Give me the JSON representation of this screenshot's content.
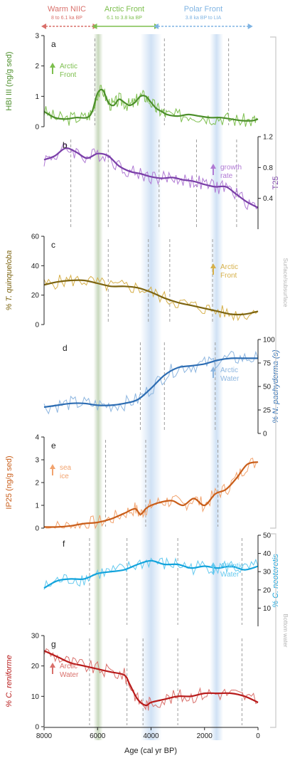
{
  "figure": {
    "x_axis_label": "Age (cal yr BP)",
    "x_ticks": [
      8000,
      6000,
      4000,
      2000,
      0
    ],
    "xlim": [
      8000,
      0
    ]
  },
  "phases": [
    {
      "title": "Warm NIIC",
      "range": "8 to 6.1 ka BP",
      "color": "#d9706b",
      "start": 8000,
      "end": 6100
    },
    {
      "title": "Arctic Front",
      "range": "6.1 to 3.8 ka BP",
      "color": "#7dbf4e",
      "start": 6100,
      "end": 3800
    },
    {
      "title": "Polar Front",
      "range": "3.8 ka BP to LIA",
      "color": "#7fb4e3",
      "start": 3800,
      "end": 300
    }
  ],
  "shading": [
    {
      "start": 6150,
      "end": 5800,
      "color": "#9cb887"
    },
    {
      "start": 4400,
      "end": 3600,
      "color": "#a9c9ec"
    },
    {
      "start": 1800,
      "end": 1300,
      "color": "#a9c9ec"
    }
  ],
  "brackets": [
    {
      "label": "Surface/subsurface"
    },
    {
      "label": "Bottom water"
    }
  ],
  "chart_data": [
    {
      "type": "line",
      "letter": "a",
      "ylabel": "HBI III (ng/g sed)",
      "color": "#7dbf4e",
      "smooth_color": "#4d8f2b",
      "ylim": [
        0,
        3
      ],
      "yticks": [
        0,
        1,
        2,
        3
      ],
      "annotation": [
        "Arctic",
        "Front"
      ],
      "dashed_lines": [
        6100,
        3500,
        1100
      ],
      "series": [
        {
          "x": [
            8000,
            7600,
            7200,
            6800,
            6400,
            6200,
            6000,
            5800,
            5600,
            5400,
            5200,
            5000,
            4800,
            4600,
            4400,
            4200,
            4000,
            3800,
            3600,
            3400,
            3000,
            2600,
            2200,
            1800,
            1400,
            1000,
            600,
            200,
            0
          ],
          "y": [
            0.5,
            0.3,
            0.25,
            0.3,
            0.3,
            0.5,
            1.1,
            1.2,
            0.8,
            0.7,
            0.9,
            0.8,
            0.7,
            0.8,
            1.0,
            1.0,
            0.8,
            0.6,
            0.5,
            0.4,
            0.35,
            0.4,
            0.35,
            0.3,
            0.3,
            0.25,
            0.2,
            0.2,
            0.25
          ]
        }
      ]
    },
    {
      "type": "line",
      "letter": "b",
      "ylabel": "T25",
      "color": "#b07ad4",
      "smooth_color": "#7a3fa8",
      "ylim": [
        0,
        1.2
      ],
      "yticks": [
        0.4,
        0.8,
        1.2
      ],
      "annotation": [
        "growth",
        "rate"
      ],
      "dashed_lines": [
        7000,
        5600,
        3700,
        2300,
        800
      ],
      "series": [
        {
          "x": [
            8000,
            7600,
            7200,
            6800,
            6400,
            6000,
            5600,
            5200,
            4800,
            4400,
            4000,
            3600,
            3200,
            2800,
            2400,
            2000,
            1600,
            1200,
            800,
            400,
            0
          ],
          "y": [
            0.9,
            0.95,
            1.05,
            1.0,
            0.92,
            0.98,
            0.95,
            0.82,
            0.75,
            0.72,
            0.68,
            0.66,
            0.67,
            0.64,
            0.62,
            0.58,
            0.55,
            0.55,
            0.45,
            0.35,
            0.28
          ]
        }
      ]
    },
    {
      "type": "line",
      "letter": "c",
      "ylabel": "% T. quinqueloba",
      "color": "#d6b04a",
      "smooth_color": "#7d6410",
      "ylim": [
        0,
        60
      ],
      "yticks": [
        0,
        20,
        40,
        60
      ],
      "annotation": [
        "Arctic",
        "Front"
      ],
      "dashed_lines": [
        5600,
        4100,
        3300,
        1700
      ],
      "series": [
        {
          "x": [
            8000,
            7500,
            7000,
            6500,
            6000,
            5500,
            5000,
            4500,
            4000,
            3500,
            3000,
            2500,
            2000,
            1500,
            1000,
            500,
            0
          ],
          "y": [
            27,
            29,
            30,
            30,
            28,
            26,
            26,
            25,
            22,
            18,
            15,
            13,
            11,
            9,
            7,
            7,
            9
          ]
        }
      ]
    },
    {
      "type": "line",
      "letter": "d",
      "ylabel": "% N. pachyderma (s)",
      "color": "#8db6e0",
      "smooth_color": "#2d6db3",
      "ylim": [
        0,
        100
      ],
      "yticks": [
        0,
        25,
        50,
        75,
        100
      ],
      "annotation": [
        "Arctic",
        "Water"
      ],
      "dashed_lines": [
        4400,
        3500,
        1600
      ],
      "series": [
        {
          "x": [
            8000,
            7500,
            7000,
            6500,
            6000,
            5500,
            5000,
            4500,
            4000,
            3500,
            3000,
            2500,
            2000,
            1500,
            1000,
            500,
            0
          ],
          "y": [
            28,
            30,
            32,
            32,
            30,
            30,
            32,
            36,
            48,
            62,
            70,
            72,
            74,
            78,
            80,
            80,
            80
          ]
        }
      ]
    },
    {
      "type": "line",
      "letter": "e",
      "ylabel": "IP25 (ng/g sed)",
      "color": "#f2a36e",
      "smooth_color": "#c95e1a",
      "ylim": [
        0,
        4
      ],
      "yticks": [
        0,
        1,
        2,
        3,
        4
      ],
      "annotation": [
        "sea",
        "ice"
      ],
      "dashed_lines": [
        5700,
        4200,
        1500
      ],
      "series": [
        {
          "x": [
            8000,
            7500,
            7000,
            6500,
            6000,
            5500,
            5000,
            4600,
            4400,
            4200,
            4000,
            3600,
            3200,
            2800,
            2400,
            2000,
            1600,
            1200,
            800,
            400,
            0
          ],
          "y": [
            0.05,
            0.05,
            0.1,
            0.2,
            0.25,
            0.4,
            0.65,
            0.85,
            0.6,
            0.85,
            1.0,
            1.15,
            1.2,
            1.0,
            1.3,
            1.0,
            1.5,
            1.7,
            2.2,
            2.8,
            2.9
          ]
        }
      ]
    },
    {
      "type": "line",
      "letter": "f",
      "ylabel": "% C. neoteretis",
      "color": "#63c9ef",
      "smooth_color": "#12a3dc",
      "ylim": [
        0,
        50
      ],
      "yticks": [
        10,
        20,
        30,
        40,
        50
      ],
      "annotation": [
        "Atlantic",
        "Water"
      ],
      "dashed_lines": [
        6300,
        4900,
        3000,
        600
      ],
      "series": [
        {
          "x": [
            8000,
            7500,
            7000,
            6500,
            6000,
            5500,
            5000,
            4500,
            4000,
            3500,
            3000,
            2500,
            2000,
            1500,
            1000,
            500,
            0
          ],
          "y": [
            21,
            25,
            26,
            26,
            29,
            30,
            31,
            34,
            36,
            34,
            34,
            32,
            33,
            32,
            33,
            31,
            33
          ]
        }
      ]
    },
    {
      "type": "line",
      "letter": "g",
      "ylabel": "% C. reniforme",
      "color": "#d9706b",
      "smooth_color": "#b81b1b",
      "ylim": [
        0,
        30
      ],
      "yticks": [
        0,
        10,
        20,
        30
      ],
      "annotation": [
        "Arctic",
        "Water"
      ],
      "dashed_lines": [
        6300,
        4900,
        4300,
        3000,
        600
      ],
      "series": [
        {
          "x": [
            8000,
            7500,
            7000,
            6500,
            6000,
            5500,
            5000,
            4800,
            4500,
            4200,
            4000,
            3500,
            3000,
            2500,
            2000,
            1500,
            1000,
            500,
            0
          ],
          "y": [
            25,
            23,
            21,
            20,
            19,
            18,
            17,
            14,
            9,
            7,
            8,
            9,
            10,
            10,
            11,
            11,
            11,
            10,
            8
          ]
        }
      ]
    }
  ]
}
